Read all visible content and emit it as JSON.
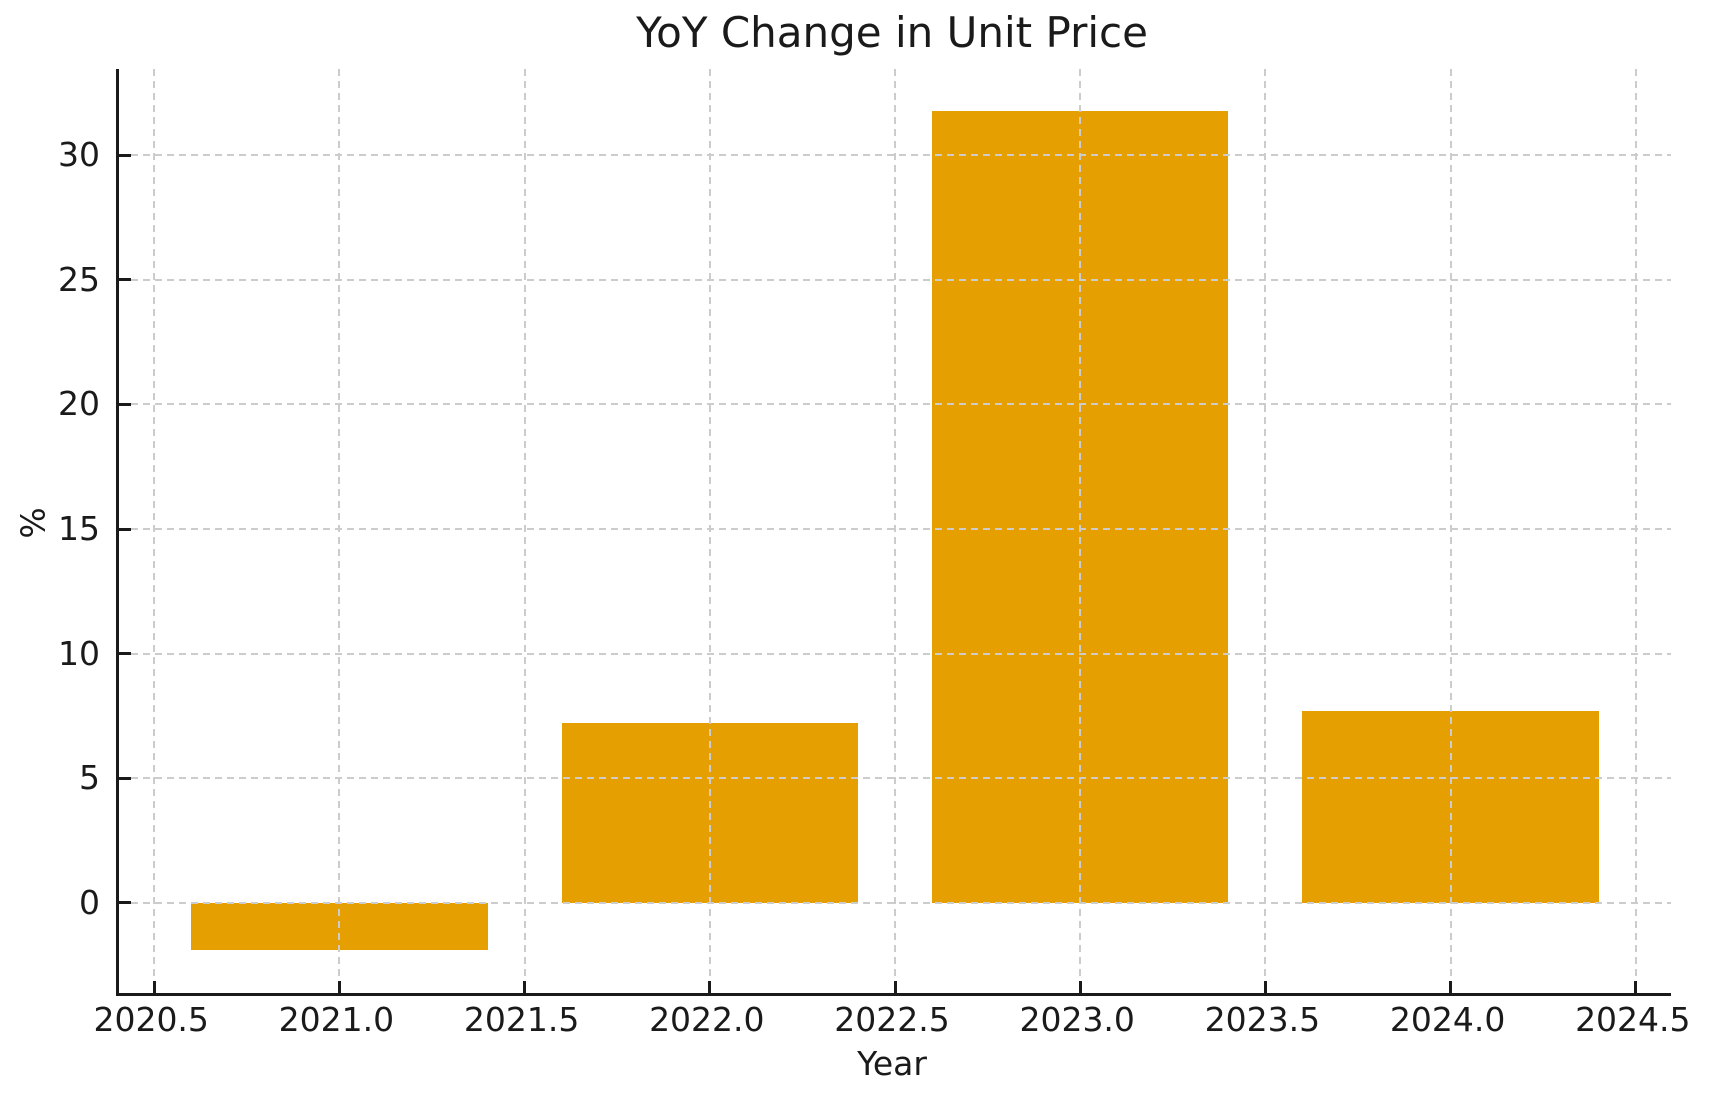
{
  "figure": {
    "background": "#ffffff",
    "text_color": "#1a1a1a"
  },
  "chart_data": {
    "type": "bar",
    "title": "YoY Change in Unit Price",
    "xlabel": "Year",
    "ylabel": "%",
    "x": [
      2021,
      2022,
      2023,
      2024
    ],
    "values": [
      -1.9,
      7.2,
      31.8,
      7.7
    ],
    "bar_width": 0.8,
    "bar_color": "#E69F00",
    "xlim": [
      2020.405,
      2024.595
    ],
    "ylim": [
      -3.63,
      33.47
    ],
    "xticks": [
      2020.5,
      2021.0,
      2021.5,
      2022.0,
      2022.5,
      2023.0,
      2023.5,
      2024.0,
      2024.5
    ],
    "xtick_labels": [
      "2020.5",
      "2021.0",
      "2021.5",
      "2022.0",
      "2022.5",
      "2023.0",
      "2023.5",
      "2024.0",
      "2024.5"
    ],
    "yticks": [
      0,
      5,
      10,
      15,
      20,
      25,
      30
    ],
    "ytick_labels": [
      "0",
      "5",
      "10",
      "15",
      "20",
      "25",
      "30"
    ],
    "grid": true,
    "grid_style": "dashed",
    "grid_color": "#cccccc",
    "axis_color": "#1a1a1a",
    "legend": null
  }
}
